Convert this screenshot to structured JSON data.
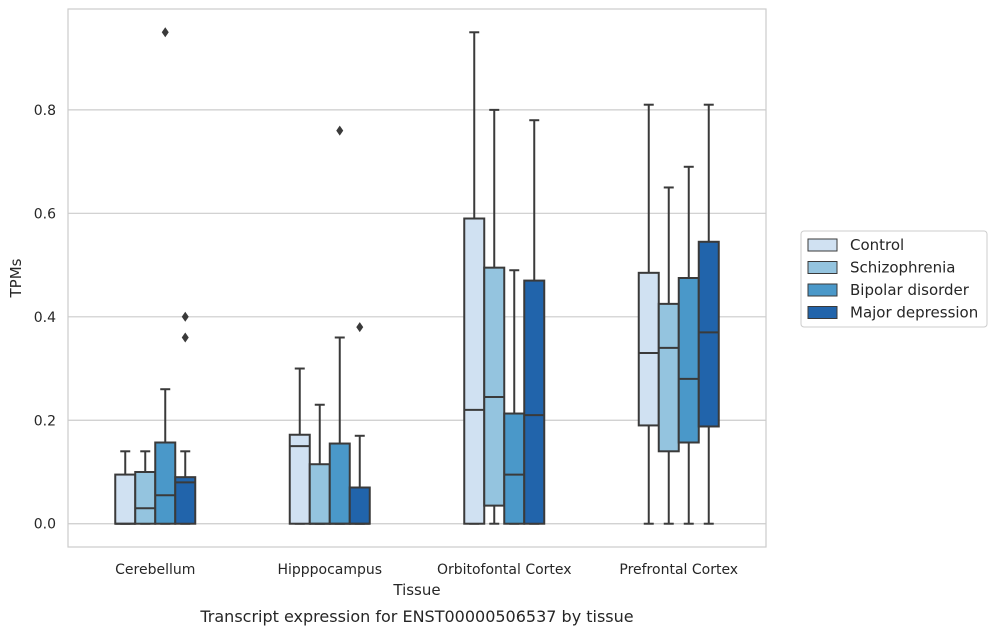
{
  "chart_data": {
    "type": "box",
    "caption": "Transcript expression for ENST00000506537 by tissue",
    "xlabel": "Tissue",
    "ylabel": "TPMs",
    "ylim": [
      -0.045,
      0.995
    ],
    "yticks": [
      "0.0",
      "0.2",
      "0.4",
      "0.6",
      "0.8"
    ],
    "ytick_values": [
      0.0,
      0.2,
      0.4,
      0.6,
      0.8
    ],
    "grid": true,
    "legend_position": "right",
    "categories": [
      "Cerebellum",
      "Hipppocampus",
      "Orbitofontal Cortex",
      "Prefrontal Cortex"
    ],
    "series": [
      {
        "name": "Control",
        "color": "#d0e1f2",
        "boxes": [
          {
            "whislo": 0.0,
            "q1": 0.0,
            "med": 0.0,
            "q3": 0.095,
            "whishi": 0.14,
            "fliers": []
          },
          {
            "whislo": 0.0,
            "q1": 0.0,
            "med": 0.15,
            "q3": 0.172,
            "whishi": 0.3,
            "fliers": []
          },
          {
            "whislo": 0.0,
            "q1": 0.0,
            "med": 0.22,
            "q3": 0.59,
            "whishi": 0.95,
            "fliers": []
          },
          {
            "whislo": 0.0,
            "q1": 0.19,
            "med": 0.33,
            "q3": 0.485,
            "whishi": 0.81,
            "fliers": []
          }
        ]
      },
      {
        "name": "Schizophrenia",
        "color": "#94c4df",
        "boxes": [
          {
            "whislo": 0.0,
            "q1": 0.0,
            "med": 0.03,
            "q3": 0.1,
            "whishi": 0.14,
            "fliers": []
          },
          {
            "whislo": 0.0,
            "q1": 0.0,
            "med": 0.0,
            "q3": 0.115,
            "whishi": 0.23,
            "fliers": []
          },
          {
            "whislo": 0.0,
            "q1": 0.035,
            "med": 0.245,
            "q3": 0.495,
            "whishi": 0.8,
            "fliers": []
          },
          {
            "whislo": 0.0,
            "q1": 0.14,
            "med": 0.34,
            "q3": 0.425,
            "whishi": 0.65,
            "fliers": []
          }
        ]
      },
      {
        "name": "Bipolar disorder",
        "color": "#4a98c9",
        "boxes": [
          {
            "whislo": 0.0,
            "q1": 0.0,
            "med": 0.055,
            "q3": 0.157,
            "whishi": 0.26,
            "fliers": [
              0.95
            ]
          },
          {
            "whislo": 0.0,
            "q1": 0.0,
            "med": 0.0,
            "q3": 0.155,
            "whishi": 0.36,
            "fliers": [
              0.76
            ]
          },
          {
            "whislo": 0.0,
            "q1": 0.0,
            "med": 0.095,
            "q3": 0.213,
            "whishi": 0.49,
            "fliers": []
          },
          {
            "whislo": 0.0,
            "q1": 0.157,
            "med": 0.28,
            "q3": 0.475,
            "whishi": 0.69,
            "fliers": []
          }
        ]
      },
      {
        "name": "Major depression",
        "color": "#2164ab",
        "boxes": [
          {
            "whislo": 0.0,
            "q1": 0.0,
            "med": 0.08,
            "q3": 0.09,
            "whishi": 0.14,
            "fliers": [
              0.4,
              0.36
            ]
          },
          {
            "whislo": 0.0,
            "q1": 0.0,
            "med": 0.0,
            "q3": 0.07,
            "whishi": 0.17,
            "fliers": [
              0.38
            ]
          },
          {
            "whislo": 0.0,
            "q1": 0.0,
            "med": 0.21,
            "q3": 0.47,
            "whishi": 0.78,
            "fliers": []
          },
          {
            "whislo": 0.0,
            "q1": 0.188,
            "med": 0.37,
            "q3": 0.545,
            "whishi": 0.81,
            "fliers": []
          }
        ]
      }
    ]
  }
}
